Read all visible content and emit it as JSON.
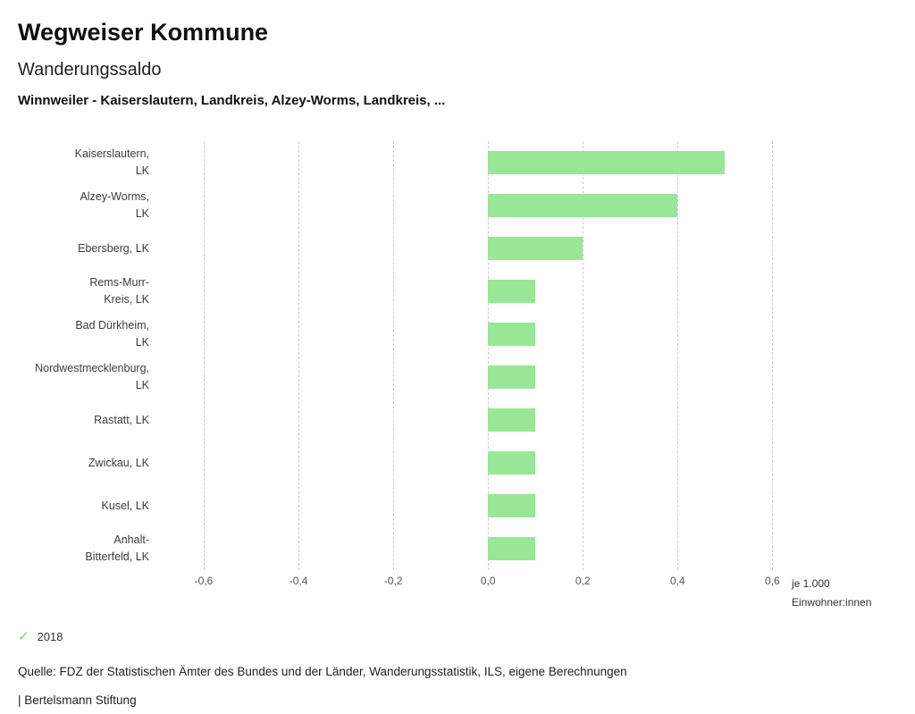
{
  "header": {
    "title": "Wegweiser Kommune",
    "subtitle": "Wanderungssaldo",
    "filter_line": "Winnweiler - Kaiserslautern, Landkreis, Alzey-Worms, Landkreis, ..."
  },
  "chart_data": {
    "type": "bar",
    "orientation": "horizontal",
    "title": "Wanderungssaldo",
    "categories": [
      "Kaiserslautern,\nLK",
      "Alzey-Worms,\nLK",
      "Ebersberg, LK",
      "Rems-Murr-\nKreis, LK",
      "Bad Dürkheim,\nLK",
      "Nordwestmecklenburg,\nLK",
      "Rastatt, LK",
      "Zwickau, LK",
      "Kusel, LK",
      "Anhalt-\nBitterfeld, LK"
    ],
    "series": [
      {
        "name": "2018",
        "values": [
          0.5,
          0.4,
          0.2,
          0.1,
          0.1,
          0.1,
          0.1,
          0.1,
          0.1,
          0.1
        ]
      }
    ],
    "xlim": [
      -0.7,
      0.62
    ],
    "ticks": [
      {
        "value": -0.6,
        "label": "-0,6"
      },
      {
        "value": -0.4,
        "label": "-0,4"
      },
      {
        "value": -0.2,
        "label": "-0,2"
      },
      {
        "value": 0.0,
        "label": "0,0"
      },
      {
        "value": 0.2,
        "label": "0,2"
      },
      {
        "value": 0.4,
        "label": "0,4"
      },
      {
        "value": 0.6,
        "label": "0,6"
      }
    ],
    "xlabel": "je 1.000 Einwohner:innen",
    "unit_label_lines": [
      "je 1.000",
      "Einwohner:innen"
    ],
    "grid": "dashed-vertical",
    "legend_position": "bottom-left",
    "bar_color": "#98e797",
    "grid_color": "#cccccc"
  },
  "legend": {
    "check_icon": "✓",
    "check_color": "#7ed06e",
    "year": "2018"
  },
  "footer": {
    "source": "Quelle: FDZ der Statistischen Ämter des Bundes und der Länder, Wanderungsstatistik, ILS, eigene Berechnungen",
    "branding": "| Bertelsmann Stiftung"
  }
}
